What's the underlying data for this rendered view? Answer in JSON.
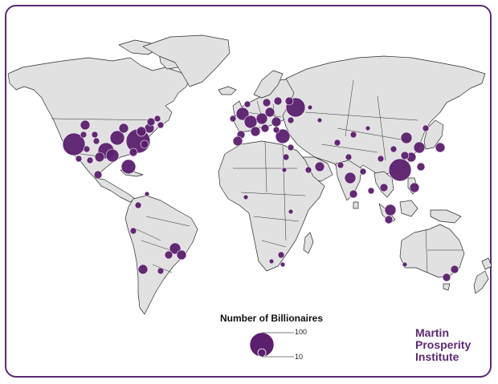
{
  "map": {
    "land_color": "#e1e1e1",
    "border_color": "#2b2b2b",
    "bubble_color": "#5b1f6e",
    "frame_color": "#5b2a72"
  },
  "legend": {
    "title": "Number of Billionaires",
    "label_large": "100",
    "label_small": "10"
  },
  "logo": {
    "line1": "Martin",
    "line2": "Prosperity",
    "line3": "Institute"
  }
}
